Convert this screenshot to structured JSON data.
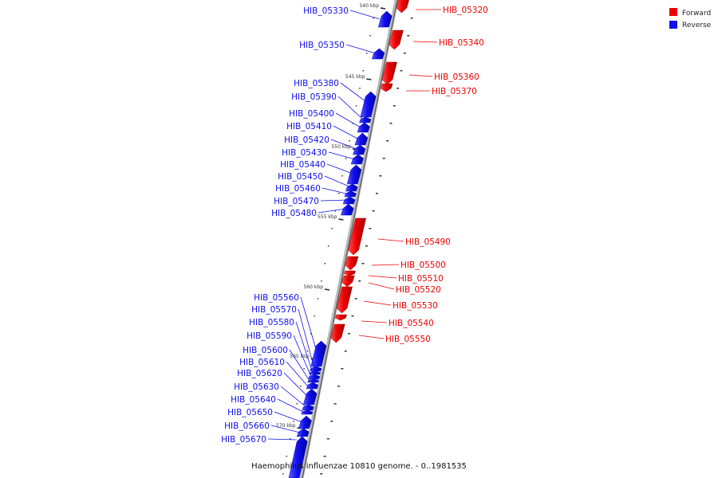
{
  "caption": "Haemophilus influenzae 10810 genome. - 0..1981535",
  "legend": [
    {
      "label": "Forward",
      "color": "#ee0000"
    },
    {
      "label": "Reverse",
      "color": "#1010ee"
    }
  ],
  "colors": {
    "forward": "#ee0000",
    "reverse": "#1010ee",
    "backbone": "#999999"
  },
  "scale_labels": [
    "540 kbp",
    "545 kbp",
    "550 kbp",
    "555 kbp",
    "560 kbp",
    "565 kbp",
    "570 kbp"
  ],
  "genes": [
    {
      "name": "HIB_05320",
      "strand": "forward"
    },
    {
      "name": "HIB_05330",
      "strand": "reverse"
    },
    {
      "name": "HIB_05340",
      "strand": "forward"
    },
    {
      "name": "HIB_05350",
      "strand": "reverse"
    },
    {
      "name": "HIB_05360",
      "strand": "forward"
    },
    {
      "name": "HIB_05370",
      "strand": "forward"
    },
    {
      "name": "HIB_05380",
      "strand": "reverse"
    },
    {
      "name": "HIB_05390",
      "strand": "reverse"
    },
    {
      "name": "HIB_05400",
      "strand": "reverse"
    },
    {
      "name": "HIB_05410",
      "strand": "reverse"
    },
    {
      "name": "HIB_05420",
      "strand": "reverse"
    },
    {
      "name": "HIB_05430",
      "strand": "reverse"
    },
    {
      "name": "HIB_05440",
      "strand": "reverse"
    },
    {
      "name": "HIB_05450",
      "strand": "reverse"
    },
    {
      "name": "HIB_05460",
      "strand": "reverse"
    },
    {
      "name": "HIB_05470",
      "strand": "reverse"
    },
    {
      "name": "HIB_05480",
      "strand": "reverse"
    },
    {
      "name": "HIB_05490",
      "strand": "forward"
    },
    {
      "name": "HIB_05500",
      "strand": "forward"
    },
    {
      "name": "HIB_05510",
      "strand": "forward"
    },
    {
      "name": "HIB_05520",
      "strand": "forward"
    },
    {
      "name": "HIB_05530",
      "strand": "forward"
    },
    {
      "name": "HIB_05540",
      "strand": "forward"
    },
    {
      "name": "HIB_05550",
      "strand": "forward"
    },
    {
      "name": "HIB_05560",
      "strand": "reverse"
    },
    {
      "name": "HIB_05570",
      "strand": "reverse"
    },
    {
      "name": "HIB_05580",
      "strand": "reverse"
    },
    {
      "name": "HIB_05590",
      "strand": "reverse"
    },
    {
      "name": "HIB_05600",
      "strand": "reverse"
    },
    {
      "name": "HIB_05610",
      "strand": "reverse"
    },
    {
      "name": "HIB_05620",
      "strand": "reverse"
    },
    {
      "name": "HIB_05630",
      "strand": "reverse"
    },
    {
      "name": "HIB_05640",
      "strand": "reverse"
    },
    {
      "name": "HIB_05650",
      "strand": "reverse"
    },
    {
      "name": "HIB_05660",
      "strand": "reverse"
    },
    {
      "name": "HIB_05670",
      "strand": "reverse"
    }
  ]
}
